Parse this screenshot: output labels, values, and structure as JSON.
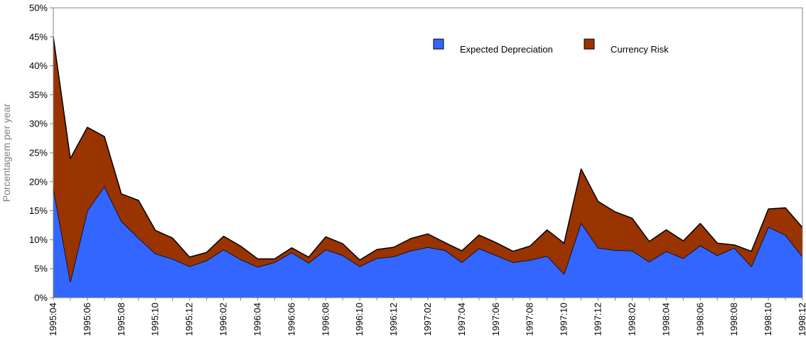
{
  "chart_data": {
    "type": "area",
    "stacked": true,
    "title": "",
    "xlabel": "",
    "ylabel": "Porcentagem per year",
    "ylim": [
      0,
      50
    ],
    "yticks": [
      "0%",
      "5%",
      "10%",
      "15%",
      "20%",
      "25%",
      "30%",
      "35%",
      "40%",
      "45%",
      "50%"
    ],
    "grid": false,
    "legend_position": "top-right",
    "x": [
      "1995:04",
      "1995:05",
      "1995:06",
      "1995:07",
      "1995:08",
      "1995:09",
      "1995:10",
      "1995:11",
      "1995:12",
      "1996:01",
      "1996:02",
      "1996:03",
      "1996:04",
      "1996:05",
      "1996:06",
      "1996:07",
      "1996:08",
      "1996:09",
      "1996:10",
      "1996:11",
      "1996:12",
      "1997:01",
      "1997:02",
      "1997:03",
      "1997:04",
      "1997:05",
      "1997:06",
      "1997:07",
      "1997:08",
      "1997:09",
      "1997:10",
      "1997:11",
      "1997:12",
      "1998:01",
      "1998:02",
      "1998:03",
      "1998:04",
      "1998:05",
      "1998:06",
      "1998:07",
      "1998:08",
      "1998:09",
      "1998:10",
      "1998:11",
      "1998:12"
    ],
    "xtick_labels": [
      "1995:04",
      "1995:06",
      "1995:08",
      "1995:10",
      "1995:12",
      "1996:02",
      "1996:04",
      "1996:06",
      "1996:08",
      "1996:10",
      "1996:12",
      "1997:02",
      "1997:04",
      "1997:06",
      "1997:08",
      "1997:10",
      "1997:12",
      "1998:02",
      "1998:04",
      "1998:06",
      "1998:08",
      "1998:10",
      "1998:12"
    ],
    "series": [
      {
        "name": "Expected Depreciation",
        "color": "#3366ff",
        "values": [
          19,
          2.8,
          15,
          19.2,
          13.2,
          10.3,
          7.6,
          6.7,
          5.4,
          6.4,
          8.3,
          6.6,
          5.3,
          6.1,
          7.8,
          6,
          8.3,
          7.3,
          5.4,
          6.8,
          7.1,
          8.1,
          8.7,
          8.2,
          6.1,
          8.5,
          7.3,
          6.1,
          6.5,
          7.2,
          4.1,
          12.9,
          8.6,
          8.2,
          8.1,
          6.2,
          8,
          6.8,
          9,
          7.3,
          8.6,
          5.4,
          12.2,
          10.8,
          7.1
        ]
      },
      {
        "name": "Currency Risk",
        "color": "#993300",
        "values": [
          26,
          21.2,
          14.4,
          8.6,
          4.7,
          6.5,
          4,
          3.6,
          1.6,
          1.4,
          2.3,
          2.3,
          1.4,
          0.6,
          0.8,
          1,
          2.2,
          2,
          1.1,
          1.5,
          1.6,
          2.1,
          2.3,
          1.3,
          2,
          2.3,
          2.2,
          1.9,
          2.4,
          4.5,
          5.3,
          9.3,
          8,
          6.6,
          5.6,
          3.5,
          3.7,
          3,
          3.8,
          2.1,
          0.5,
          2.6,
          3.1,
          4.7,
          5
        ]
      }
    ]
  }
}
